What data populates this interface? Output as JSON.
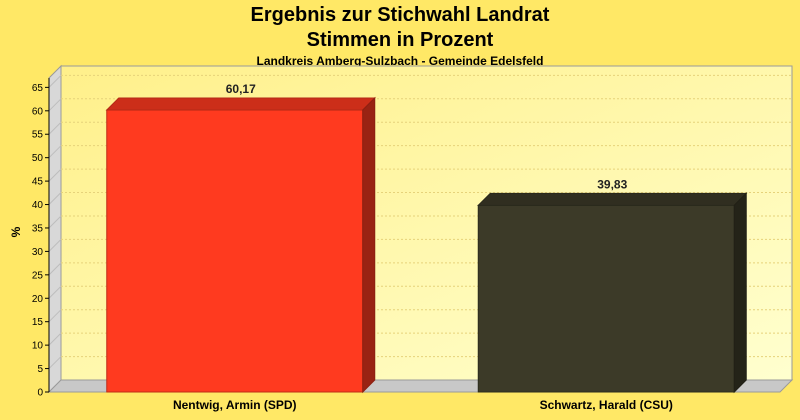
{
  "chart_data": {
    "type": "bar",
    "title": "Ergebnis zur Stichwahl Landrat",
    "title2": "Stimmen in Prozent",
    "subtitle": "Landkreis Amberg-Sulzbach - Gemeinde Edelsfeld",
    "ylabel": "%",
    "xlabel": "",
    "ylim": [
      0,
      67
    ],
    "yticks": [
      0,
      5,
      10,
      15,
      20,
      25,
      30,
      35,
      40,
      45,
      50,
      55,
      60,
      65
    ],
    "categories": [
      "Nentwig, Armin (SPD)",
      "Schwartz, Harald (CSU)"
    ],
    "values": [
      60.17,
      39.83
    ],
    "value_labels": [
      "60,17",
      "39,83"
    ],
    "colors": [
      "#FF3A1F",
      "#3C3A28"
    ],
    "grid": true,
    "legend": "none"
  }
}
